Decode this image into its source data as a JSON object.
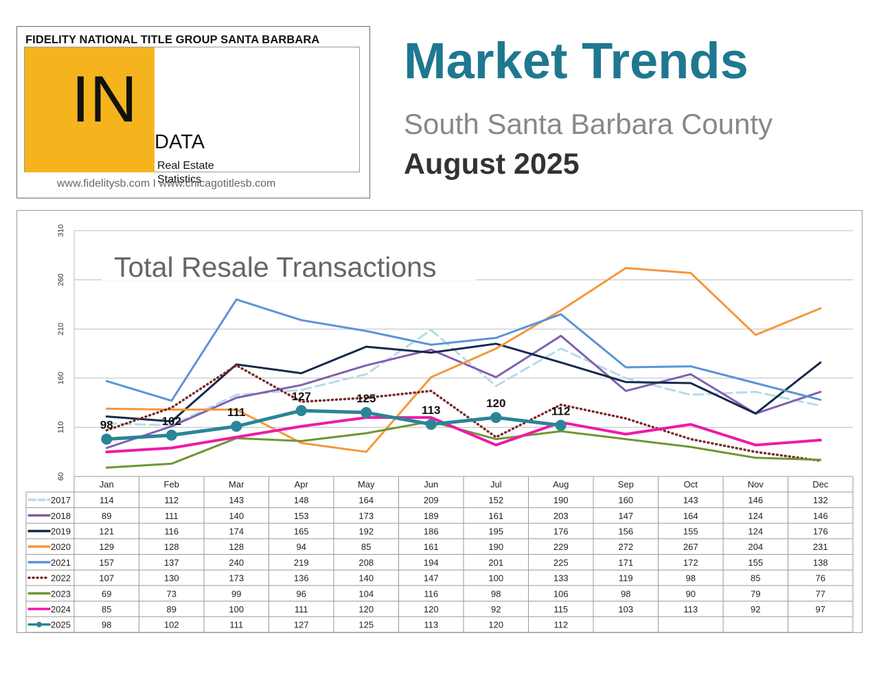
{
  "header": {
    "logo_title": "FIDELITY NATIONAL TITLE GROUP SANTA BARBARA",
    "logo_in": "IN",
    "logo_data": "DATA",
    "logo_line1": "Real Estate",
    "logo_line2": "Statistics",
    "websites": "www.fidelitysb.com I www.chicagotitlesb.com",
    "headline": "Market Trends",
    "region": "South Santa Barbara County",
    "period": "August 2025"
  },
  "chart_data": {
    "type": "line",
    "title": "Total Resale Transactions",
    "categories": [
      "Jan",
      "Feb",
      "Mar",
      "Apr",
      "May",
      "Jun",
      "Jul",
      "Aug",
      "Sep",
      "Oct",
      "Nov",
      "Dec"
    ],
    "ylim": [
      60,
      310
    ],
    "yticks": [
      60,
      110,
      160,
      210,
      260,
      310
    ],
    "grid": true,
    "series": [
      {
        "name": "2017",
        "color": "#b5dbe8",
        "dash": "dashed",
        "values": [
          114,
          112,
          143,
          148,
          164,
          209,
          152,
          190,
          160,
          143,
          146,
          132
        ]
      },
      {
        "name": "2018",
        "color": "#8060b0",
        "dash": "solid",
        "values": [
          89,
          111,
          140,
          153,
          173,
          189,
          161,
          203,
          147,
          164,
          124,
          146
        ]
      },
      {
        "name": "2019",
        "color": "#13294b",
        "dash": "solid",
        "values": [
          121,
          116,
          174,
          165,
          192,
          186,
          195,
          176,
          156,
          155,
          124,
          176
        ]
      },
      {
        "name": "2020",
        "color": "#f5963a",
        "dash": "solid",
        "values": [
          129,
          128,
          128,
          94,
          85,
          161,
          190,
          229,
          272,
          267,
          204,
          231
        ]
      },
      {
        "name": "2021",
        "color": "#5b93d9",
        "dash": "solid",
        "values": [
          157,
          137,
          240,
          219,
          208,
          194,
          201,
          225,
          171,
          172,
          155,
          138
        ]
      },
      {
        "name": "2022",
        "color": "#7a2a2a",
        "dash": "dotted",
        "values": [
          107,
          130,
          173,
          136,
          140,
          147,
          100,
          133,
          119,
          98,
          85,
          76
        ]
      },
      {
        "name": "2023",
        "color": "#6e9632",
        "dash": "solid",
        "values": [
          69,
          73,
          99,
          96,
          104,
          116,
          98,
          106,
          98,
          90,
          79,
          77
        ]
      },
      {
        "name": "2024",
        "color": "#ee1aa8",
        "dash": "solid",
        "values": [
          85,
          89,
          100,
          111,
          120,
          120,
          92,
          115,
          103,
          113,
          92,
          97
        ]
      },
      {
        "name": "2025",
        "color": "#2a8596",
        "dash": "solid",
        "values": [
          98,
          102,
          111,
          127,
          125,
          113,
          120,
          112,
          null,
          null,
          null,
          null
        ]
      }
    ],
    "data_labels": [
      {
        "series": "2025",
        "labels": [
          "98",
          "102",
          "111",
          "127",
          "125",
          "113",
          "120",
          "112"
        ]
      }
    ]
  }
}
